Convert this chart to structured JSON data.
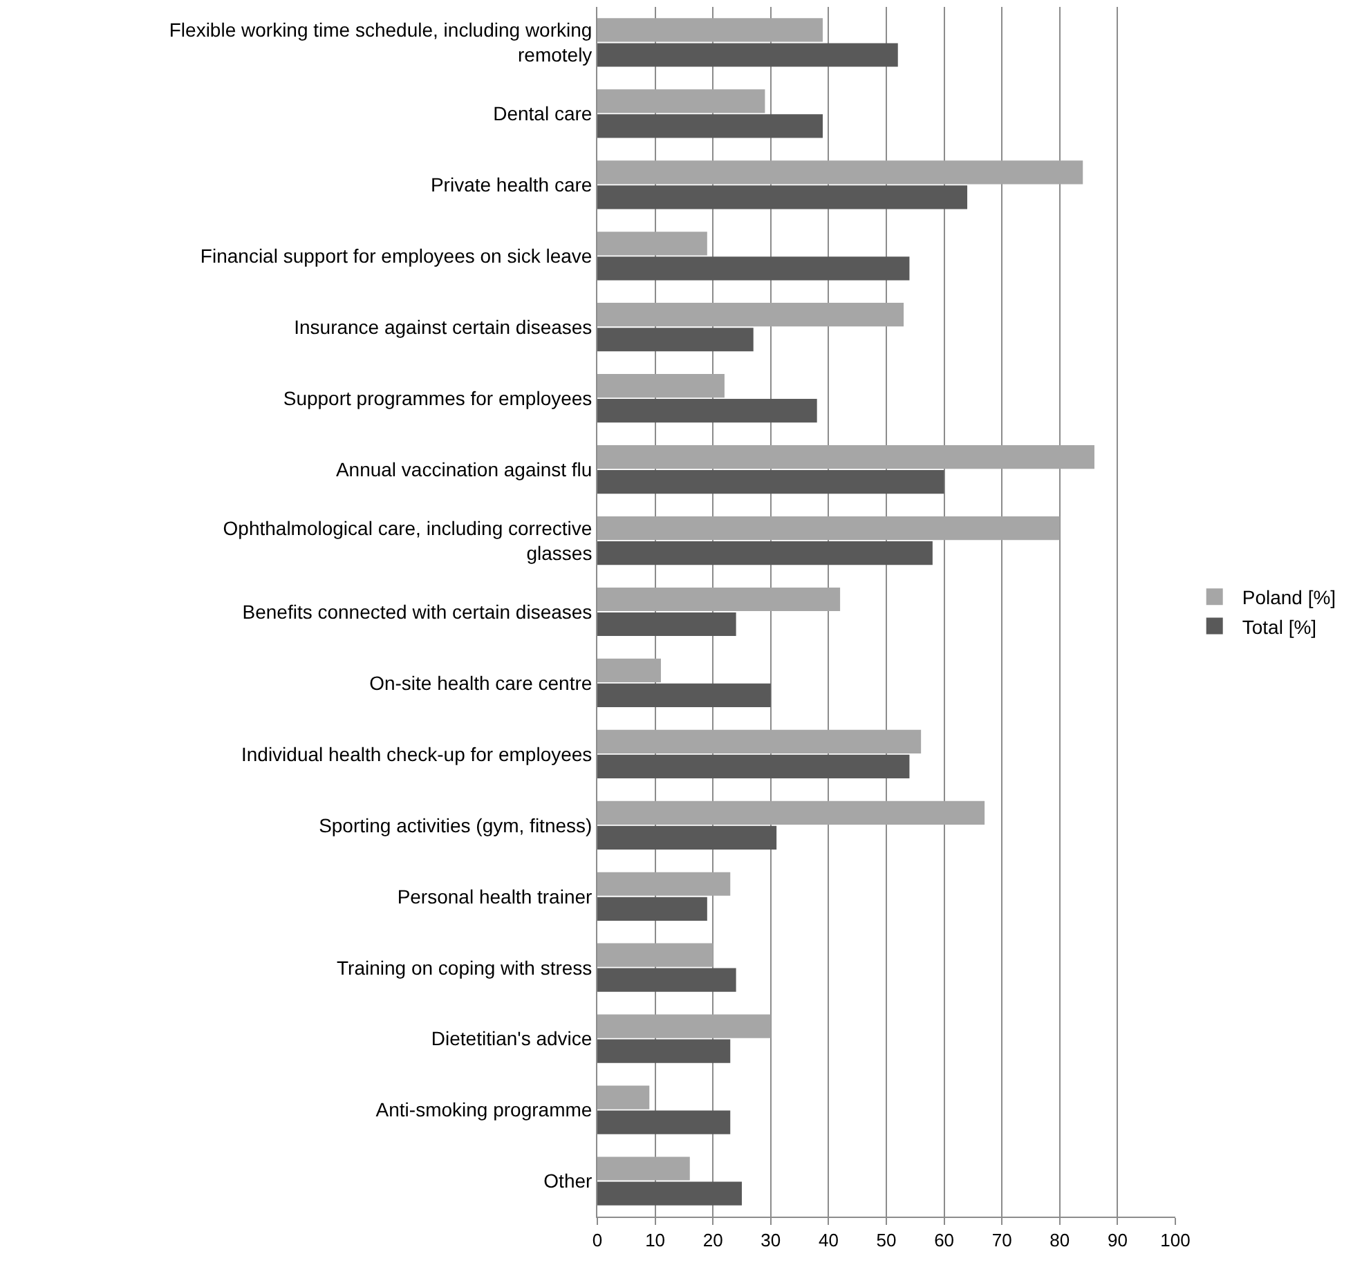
{
  "chart_data": {
    "type": "bar",
    "orientation": "horizontal",
    "categories": [
      "Flexible working time schedule, including working remotely",
      "Dental care",
      "Private health care",
      "Financial support for employees on sick leave",
      "Insurance against certain diseases",
      "Support programmes for employees",
      "Annual vaccination against flu",
      "Ophthalmological care, including corrective glasses",
      "Benefits connected with certain diseases",
      "On-site health care centre",
      "Individual health check-up for employees",
      "Sporting activities (gym, fitness)",
      "Personal health trainer",
      "Training on coping with stress",
      "Dietetitian's advice",
      "Anti-smoking programme",
      "Other"
    ],
    "series": [
      {
        "name": "Poland [%]",
        "color": "#a6a6a6",
        "values": [
          39,
          29,
          84,
          19,
          53,
          22,
          86,
          80,
          42,
          11,
          56,
          67,
          23,
          20,
          30,
          9,
          16
        ]
      },
      {
        "name": "Total [%]",
        "color": "#595959",
        "values": [
          52,
          39,
          64,
          54,
          27,
          38,
          60,
          58,
          24,
          30,
          54,
          31,
          19,
          24,
          23,
          23,
          25
        ]
      }
    ],
    "xlim": [
      0,
      100
    ],
    "xticks": [
      0,
      10,
      20,
      30,
      40,
      50,
      60,
      70,
      80,
      90,
      100
    ],
    "grid": "x",
    "legend": "right"
  }
}
